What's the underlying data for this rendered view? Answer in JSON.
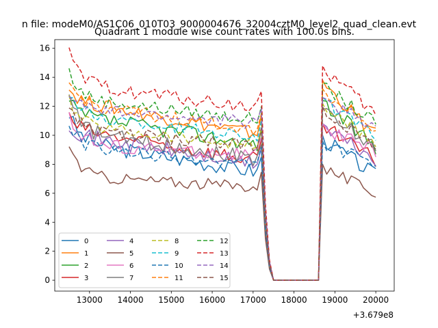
{
  "chart_data": {
    "type": "line",
    "suptitle": "n file: modeM0/AS1C06_010T03_9000004676_32004cztM0_level2_quad_clean.evt",
    "title": "Quadrant 1 module wise count rates with 100.0s bins.",
    "xlabel": "",
    "ylabel": "",
    "x_offset_label": "+3.679e8",
    "xlim": [
      12150,
      20450
    ],
    "ylim": [
      -0.75,
      16.6
    ],
    "x_ticks": [
      13000,
      14000,
      15000,
      16000,
      17000,
      18000,
      19000,
      20000
    ],
    "x_tick_labels": [
      "13000",
      "14000",
      "15000",
      "16000",
      "17000",
      "18000",
      "19000",
      "20000"
    ],
    "y_ticks": [
      0,
      2,
      4,
      6,
      8,
      10,
      12,
      14,
      16
    ],
    "y_tick_labels": [
      "0",
      "2",
      "4",
      "6",
      "8",
      "10",
      "12",
      "14",
      "16"
    ],
    "grid": false,
    "legend_position": "lower-left",
    "legend_columns": 4,
    "x_start": 12500,
    "x_step": 100,
    "gap": {
      "drop_start": 17300,
      "low_from": 17500,
      "low_to": 18600,
      "rise_at": 18700
    },
    "series": [
      {
        "name": "0",
        "color": "#1f77b4",
        "dash": "solid",
        "level_a": 9.6,
        "level_b": 7.4,
        "level_c": 9.8,
        "level_d": 7.2,
        "start": 11.5,
        "noise": 0.55
      },
      {
        "name": "1",
        "color": "#ff7f0e",
        "dash": "solid",
        "level_a": 12.4,
        "level_b": 10.0,
        "level_c": 13.6,
        "level_d": 10.0,
        "start": 13.2,
        "noise": 0.5
      },
      {
        "name": "2",
        "color": "#2ca02c",
        "dash": "solid",
        "level_a": 11.4,
        "level_b": 9.3,
        "level_c": 12.2,
        "level_d": 9.2,
        "start": 12.2,
        "noise": 0.55
      },
      {
        "name": "3",
        "color": "#d62728",
        "dash": "solid",
        "level_a": 10.4,
        "level_b": 8.2,
        "level_c": 10.6,
        "level_d": 8.3,
        "start": 11.2,
        "noise": 0.55
      },
      {
        "name": "4",
        "color": "#9467bd",
        "dash": "solid",
        "level_a": 10.0,
        "level_b": 7.9,
        "level_c": 10.6,
        "level_d": 8.3,
        "start": 10.8,
        "noise": 0.55
      },
      {
        "name": "5",
        "color": "#8c564b",
        "dash": "solid",
        "level_a": 7.2,
        "level_b": 6.4,
        "level_c": 7.8,
        "level_d": 6.0,
        "start": 9.4,
        "noise": 0.4
      },
      {
        "name": "6",
        "color": "#e377c2",
        "dash": "solid",
        "level_a": 9.4,
        "level_b": 8.6,
        "level_c": 10.6,
        "level_d": 8.8,
        "start": 11.6,
        "noise": 0.5
      },
      {
        "name": "7",
        "color": "#7f7f7f",
        "dash": "solid",
        "level_a": 10.3,
        "level_b": 8.3,
        "level_c": 11.6,
        "level_d": 9.2,
        "start": 12.6,
        "noise": 0.55
      },
      {
        "name": "8",
        "color": "#bcbd22",
        "dash": "6,3",
        "level_a": 10.8,
        "level_b": 9.2,
        "level_c": 12.0,
        "level_d": 9.4,
        "start": 12.4,
        "noise": 0.45
      },
      {
        "name": "9",
        "color": "#17becf",
        "dash": "6,3",
        "level_a": 11.4,
        "level_b": 9.9,
        "level_c": 12.4,
        "level_d": 9.8,
        "start": 13.0,
        "noise": 0.45
      },
      {
        "name": "10",
        "color": "#1f77b4",
        "dash": "6,3",
        "level_a": 9.2,
        "level_b": 7.8,
        "level_c": 9.4,
        "level_d": 8.0,
        "start": 10.8,
        "noise": 0.45
      },
      {
        "name": "11",
        "color": "#ff7f0e",
        "dash": "6,3",
        "level_a": 12.2,
        "level_b": 10.3,
        "level_c": 13.0,
        "level_d": 10.4,
        "start": 13.6,
        "noise": 0.45
      },
      {
        "name": "12",
        "color": "#2ca02c",
        "dash": "6,3",
        "level_a": 12.6,
        "level_b": 11.0,
        "level_c": 13.4,
        "level_d": 10.8,
        "start": 14.4,
        "noise": 0.45
      },
      {
        "name": "13",
        "color": "#d62728",
        "dash": "6,3",
        "level_a": 13.6,
        "level_b": 11.8,
        "level_c": 14.6,
        "level_d": 11.4,
        "start": 15.6,
        "noise": 0.5
      },
      {
        "name": "14",
        "color": "#9467bd",
        "dash": "6,3",
        "level_a": 11.8,
        "level_b": 10.8,
        "level_c": 12.4,
        "level_d": 10.6,
        "start": 13.0,
        "noise": 0.45
      },
      {
        "name": "15",
        "color": "#8c564b",
        "dash": "6,3",
        "level_a": 10.4,
        "level_b": 9.2,
        "level_c": 11.8,
        "level_d": 9.0,
        "start": 12.0,
        "noise": 0.45
      }
    ]
  }
}
